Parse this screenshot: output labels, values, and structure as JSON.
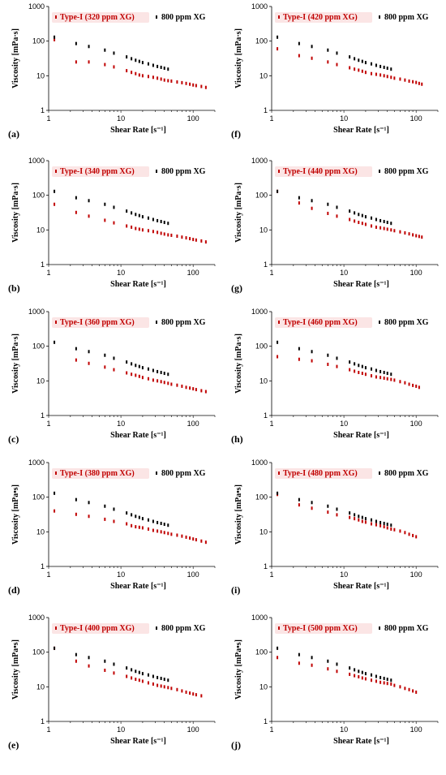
{
  "colors": {
    "typeI": "#c00000",
    "ref": "#000000",
    "legend_bg": "#fbe5e5"
  },
  "chart_data": [
    {
      "panel": "(a)",
      "type": "scatter",
      "xlabel": "Shear Rate [s⁻¹]",
      "ylabel": "Viscosity [mPa·s]",
      "xscale": "log",
      "yscale": "log",
      "xlim": [
        1,
        200
      ],
      "ylim": [
        1,
        1000
      ],
      "x_ticks": [
        "1",
        "10",
        "100"
      ],
      "y_ticks": [
        "1",
        "10",
        "100",
        "1000"
      ],
      "series": [
        {
          "name": "Type-I (320 ppm XG)",
          "x": [
            1.2,
            2.4,
            3.6,
            6,
            8,
            12,
            14,
            16,
            18,
            20,
            24,
            28,
            32,
            36,
            40,
            45,
            50,
            60,
            70,
            80,
            90,
            100,
            110,
            130,
            150
          ],
          "y": [
            110,
            25,
            25,
            21,
            18,
            14,
            12.5,
            11.5,
            10.5,
            10,
            9.5,
            9,
            8.5,
            8,
            7.5,
            7.2,
            7,
            6.6,
            6.3,
            6,
            5.7,
            5.4,
            5.2,
            4.9,
            4.6
          ]
        },
        {
          "name": "800 ppm XG",
          "x": [
            1.2,
            2.4,
            3.6,
            6,
            8,
            12,
            14,
            16,
            18,
            20,
            24,
            28,
            32,
            36,
            40,
            45
          ],
          "y": [
            130,
            85,
            70,
            55,
            45,
            35,
            31,
            28,
            26,
            24,
            22,
            20,
            18.5,
            17.5,
            16.5,
            15.5
          ]
        }
      ]
    },
    {
      "panel": "(f)",
      "type": "scatter",
      "xlabel": "Shear Rate [s⁻¹]",
      "ylabel": "Viscosity [mPa·s]",
      "xscale": "log",
      "yscale": "log",
      "xlim": [
        1,
        200
      ],
      "ylim": [
        1,
        1000
      ],
      "x_ticks": [
        "1",
        "10",
        "100"
      ],
      "y_ticks": [
        "1",
        "10",
        "100",
        "1000"
      ],
      "series": [
        {
          "name": "Type-I (420 ppm XG)",
          "x": [
            1.2,
            2.4,
            3.6,
            6,
            8,
            12,
            14,
            16,
            18,
            20,
            24,
            28,
            32,
            36,
            40,
            45,
            50,
            60,
            70,
            80,
            90,
            100,
            110,
            120
          ],
          "y": [
            60,
            38,
            32,
            25,
            21,
            17,
            15.5,
            14.5,
            13.5,
            12.5,
            11.5,
            11,
            10.5,
            10,
            9.5,
            9,
            8.5,
            8,
            7.5,
            7,
            6.7,
            6.4,
            6,
            5.7
          ]
        },
        {
          "name": "800 ppm XG",
          "x": [
            1.2,
            2.4,
            3.6,
            6,
            8,
            12,
            14,
            16,
            18,
            20,
            24,
            28,
            32,
            36,
            40,
            45
          ],
          "y": [
            130,
            85,
            70,
            55,
            45,
            35,
            31,
            28,
            26,
            24,
            22,
            20,
            18.5,
            17.5,
            16.5,
            15.5
          ]
        }
      ]
    },
    {
      "panel": "(b)",
      "type": "scatter",
      "xlabel": "Shear Rate [s⁻¹]",
      "ylabel": "Viscosity [mPa·s]",
      "xscale": "log",
      "yscale": "log",
      "xlim": [
        1,
        200
      ],
      "ylim": [
        1,
        1000
      ],
      "x_ticks": [
        "1",
        "10",
        "100"
      ],
      "y_ticks": [
        "1",
        "10",
        "100",
        "1000"
      ],
      "series": [
        {
          "name": "Type-I (340 ppm XG)",
          "x": [
            1.2,
            2.4,
            3.6,
            6,
            8,
            12,
            14,
            16,
            18,
            20,
            24,
            28,
            32,
            36,
            40,
            45,
            50,
            60,
            70,
            80,
            90,
            100,
            110,
            130,
            150
          ],
          "y": [
            55,
            32,
            25,
            19,
            16,
            13,
            12,
            11,
            10.5,
            10,
            9.5,
            9,
            8.5,
            8,
            7.6,
            7.2,
            7,
            6.6,
            6.2,
            5.9,
            5.6,
            5.3,
            5.1,
            4.8,
            4.5
          ]
        },
        {
          "name": "800 ppm XG",
          "x": [
            1.2,
            2.4,
            3.6,
            6,
            8,
            12,
            14,
            16,
            18,
            20,
            24,
            28,
            32,
            36,
            40,
            45
          ],
          "y": [
            130,
            85,
            70,
            55,
            45,
            35,
            31,
            28,
            26,
            24,
            22,
            20,
            18.5,
            17.5,
            16.5,
            15.5
          ]
        }
      ]
    },
    {
      "panel": "(g)",
      "type": "scatter",
      "xlabel": "Shear Rate [s⁻¹]",
      "ylabel": "Viscosity [mPa·s]",
      "xscale": "log",
      "yscale": "log",
      "xlim": [
        1,
        200
      ],
      "ylim": [
        1,
        1000
      ],
      "x_ticks": [
        "1",
        "10",
        "100"
      ],
      "y_ticks": [
        "1",
        "10",
        "100",
        "1000"
      ],
      "series": [
        {
          "name": "Type-I (440 ppm XG)",
          "x": [
            1.2,
            2.4,
            3.6,
            6,
            8,
            12,
            14,
            16,
            18,
            20,
            24,
            28,
            32,
            36,
            40,
            45,
            50,
            60,
            70,
            80,
            90,
            100,
            110,
            120
          ],
          "y": [
            130,
            60,
            42,
            30,
            25,
            20,
            18,
            16.5,
            15.5,
            14.5,
            13,
            12,
            11.5,
            11,
            10.5,
            10,
            9.5,
            8.8,
            8.2,
            7.7,
            7.2,
            6.8,
            6.5,
            6.2
          ]
        },
        {
          "name": "800 ppm XG",
          "x": [
            1.2,
            2.4,
            3.6,
            6,
            8,
            12,
            14,
            16,
            18,
            20,
            24,
            28,
            32,
            36,
            40,
            45
          ],
          "y": [
            130,
            85,
            70,
            55,
            45,
            35,
            31,
            28,
            26,
            24,
            22,
            20,
            18.5,
            17.5,
            16.5,
            15.5
          ]
        }
      ]
    },
    {
      "panel": "(c)",
      "type": "scatter",
      "xlabel": "Shear Rate [s⁻¹]",
      "ylabel": "Viscosity [mPa·s]",
      "xscale": "log",
      "yscale": "log",
      "xlim": [
        1,
        200
      ],
      "ylim": [
        1,
        1000
      ],
      "x_ticks": [
        "1",
        "10",
        "100"
      ],
      "y_ticks": [
        "1",
        "10",
        "100",
        "1000"
      ],
      "series": [
        {
          "name": "Type-I (360 ppm XG)",
          "x": [
            2.4,
            3.6,
            6,
            8,
            12,
            14,
            16,
            18,
            20,
            24,
            28,
            32,
            36,
            40,
            45,
            50,
            60,
            70,
            80,
            90,
            100,
            110,
            130,
            150
          ],
          "y": [
            40,
            32,
            25,
            21,
            17,
            15.5,
            14.5,
            13.5,
            12.5,
            11.5,
            10.5,
            10,
            9.5,
            9,
            8.5,
            8,
            7.5,
            7,
            6.5,
            6.2,
            5.9,
            5.6,
            5.2,
            4.9
          ]
        },
        {
          "name": "800 ppm XG",
          "x": [
            1.2,
            2.4,
            3.6,
            6,
            8,
            12,
            14,
            16,
            18,
            20,
            24,
            28,
            32,
            36,
            40,
            45
          ],
          "y": [
            130,
            85,
            70,
            55,
            45,
            35,
            31,
            28,
            26,
            24,
            22,
            20,
            18.5,
            17.5,
            16.5,
            15.5
          ]
        }
      ]
    },
    {
      "panel": "(h)",
      "type": "scatter",
      "xlabel": "Shear Rate [s⁻¹]",
      "ylabel": "Viscosity [mPa·s]",
      "xscale": "log",
      "yscale": "log",
      "xlim": [
        1,
        200
      ],
      "ylim": [
        1,
        1000
      ],
      "x_ticks": [
        "1",
        "10",
        "100"
      ],
      "y_ticks": [
        "1",
        "10",
        "100",
        "1000"
      ],
      "series": [
        {
          "name": "Type-I (460 ppm XG)",
          "x": [
            1.2,
            2.4,
            3.6,
            6,
            8,
            12,
            14,
            16,
            18,
            20,
            24,
            28,
            32,
            36,
            40,
            45,
            50,
            60,
            70,
            80,
            90,
            100,
            110
          ],
          "y": [
            50,
            42,
            38,
            30,
            26,
            21,
            19,
            17.5,
            16.5,
            15.5,
            14,
            13,
            12.5,
            12,
            11.5,
            11,
            10.5,
            9.5,
            8.8,
            8,
            7.4,
            7,
            6.5
          ]
        },
        {
          "name": "800 ppm XG",
          "x": [
            1.2,
            2.4,
            3.6,
            6,
            8,
            12,
            14,
            16,
            18,
            20,
            24,
            28,
            32,
            36,
            40,
            45
          ],
          "y": [
            130,
            85,
            70,
            55,
            45,
            35,
            31,
            28,
            26,
            24,
            22,
            20,
            18.5,
            17.5,
            16.5,
            15.5
          ]
        }
      ]
    },
    {
      "panel": "(d)",
      "type": "scatter",
      "xlabel": "Shear Rate [s⁻¹]",
      "ylabel": "Viscosity [mPa•s]",
      "xscale": "log",
      "yscale": "log",
      "xlim": [
        1,
        200
      ],
      "ylim": [
        1,
        1000
      ],
      "x_ticks": [
        "1",
        "10",
        "100"
      ],
      "y_ticks": [
        "1",
        "10",
        "100",
        "1000"
      ],
      "series": [
        {
          "name": "Type-I (380 ppm XG)",
          "x": [
            1.2,
            2.4,
            3.6,
            6,
            8,
            12,
            14,
            16,
            18,
            20,
            24,
            28,
            32,
            36,
            40,
            45,
            50,
            60,
            70,
            80,
            90,
            100,
            110,
            130,
            150
          ],
          "y": [
            40,
            32,
            28,
            23,
            20,
            17,
            15,
            14,
            13.5,
            13,
            12,
            11,
            10.5,
            10,
            9.5,
            9,
            8.5,
            8,
            7.5,
            7,
            6.6,
            6.2,
            5.9,
            5.4,
            5
          ]
        },
        {
          "name": "800 ppm XG",
          "x": [
            1.2,
            2.4,
            3.6,
            6,
            8,
            12,
            14,
            16,
            18,
            20,
            24,
            28,
            32,
            36,
            40,
            45
          ],
          "y": [
            130,
            85,
            70,
            55,
            45,
            35,
            31,
            28,
            26,
            24,
            22,
            20,
            18.5,
            17.5,
            16.5,
            15.5
          ]
        }
      ]
    },
    {
      "panel": "(i)",
      "type": "scatter",
      "xlabel": "Shear Rate [s⁻¹]",
      "ylabel": "Viscosity [mPa•s]",
      "xscale": "log",
      "yscale": "log",
      "xlim": [
        1,
        200
      ],
      "ylim": [
        1,
        1000
      ],
      "x_ticks": [
        "1",
        "10",
        "100"
      ],
      "y_ticks": [
        "1",
        "10",
        "100",
        "1000"
      ],
      "series": [
        {
          "name": "Type-I (480 ppm XG)",
          "x": [
            1.2,
            2.4,
            3.6,
            6,
            8,
            12,
            14,
            16,
            18,
            20,
            24,
            28,
            32,
            36,
            40,
            45,
            50,
            60,
            70,
            80,
            90,
            100
          ],
          "y": [
            120,
            60,
            48,
            37,
            31,
            26,
            24,
            22,
            20,
            19,
            17,
            16,
            15,
            14,
            13,
            12,
            11.5,
            10.5,
            9.5,
            8.5,
            7.8,
            7.2
          ]
        },
        {
          "name": "800 ppm XG",
          "x": [
            1.2,
            2.4,
            3.6,
            6,
            8,
            12,
            14,
            16,
            18,
            20,
            24,
            28,
            32,
            36,
            40,
            45
          ],
          "y": [
            130,
            85,
            70,
            55,
            45,
            35,
            31,
            28,
            26,
            24,
            22,
            20,
            18.5,
            17.5,
            16.5,
            15.5
          ]
        }
      ]
    },
    {
      "panel": "(e)",
      "type": "scatter",
      "xlabel": "Shear Rate [s⁻¹]",
      "ylabel": "Viscosity [mPa•s]",
      "xscale": "log",
      "yscale": "log",
      "xlim": [
        1,
        200
      ],
      "ylim": [
        1,
        1000
      ],
      "x_ticks": [
        "1",
        "10",
        "100"
      ],
      "y_ticks": [
        "1",
        "10",
        "100",
        "1000"
      ],
      "series": [
        {
          "name": "Type-I (400 ppm XG)",
          "x": [
            1.2,
            2.4,
            3.6,
            6,
            8,
            12,
            14,
            16,
            18,
            20,
            24,
            28,
            32,
            36,
            40,
            45,
            50,
            60,
            70,
            80,
            90,
            100,
            110,
            130
          ],
          "y": [
            130,
            55,
            40,
            30,
            25,
            20,
            18,
            16.5,
            15.5,
            14.5,
            13,
            12,
            11,
            10.5,
            10,
            9.5,
            9,
            8.3,
            7.6,
            7,
            6.6,
            6.2,
            5.9,
            5.5
          ]
        },
        {
          "name": "800 ppm XG",
          "x": [
            1.2,
            2.4,
            3.6,
            6,
            8,
            12,
            14,
            16,
            18,
            20,
            24,
            28,
            32,
            36,
            40,
            45
          ],
          "y": [
            130,
            85,
            70,
            55,
            45,
            35,
            31,
            28,
            26,
            24,
            22,
            20,
            18.5,
            17.5,
            16.5,
            15.5
          ]
        }
      ]
    },
    {
      "panel": "(j)",
      "type": "scatter",
      "xlabel": "Shear Rate [s⁻¹]",
      "ylabel": "Viscosity [mPa•s]",
      "xscale": "log",
      "yscale": "log",
      "xlim": [
        1,
        200
      ],
      "ylim": [
        1,
        1000
      ],
      "x_ticks": [
        "1",
        "10",
        "100"
      ],
      "y_ticks": [
        "1",
        "10",
        "100",
        "1000"
      ],
      "series": [
        {
          "name": "Type-I (500 ppm XG)",
          "x": [
            1.2,
            2.4,
            3.6,
            6,
            8,
            12,
            14,
            16,
            18,
            20,
            24,
            28,
            32,
            36,
            40,
            45,
            50,
            60,
            70,
            80,
            90,
            100
          ],
          "y": [
            70,
            48,
            42,
            33,
            28,
            23,
            21,
            19.5,
            18,
            17,
            15.5,
            14.5,
            13.5,
            13,
            12.5,
            12,
            11,
            10,
            9,
            8.3,
            7.6,
            7
          ]
        },
        {
          "name": "800 ppm XG",
          "x": [
            1.2,
            2.4,
            3.6,
            6,
            8,
            12,
            14,
            16,
            18,
            20,
            24,
            28,
            32,
            36,
            40,
            45
          ],
          "y": [
            130,
            85,
            70,
            55,
            45,
            35,
            31,
            28,
            26,
            24,
            22,
            20,
            18.5,
            17.5,
            16.5,
            15.5
          ]
        }
      ]
    }
  ]
}
